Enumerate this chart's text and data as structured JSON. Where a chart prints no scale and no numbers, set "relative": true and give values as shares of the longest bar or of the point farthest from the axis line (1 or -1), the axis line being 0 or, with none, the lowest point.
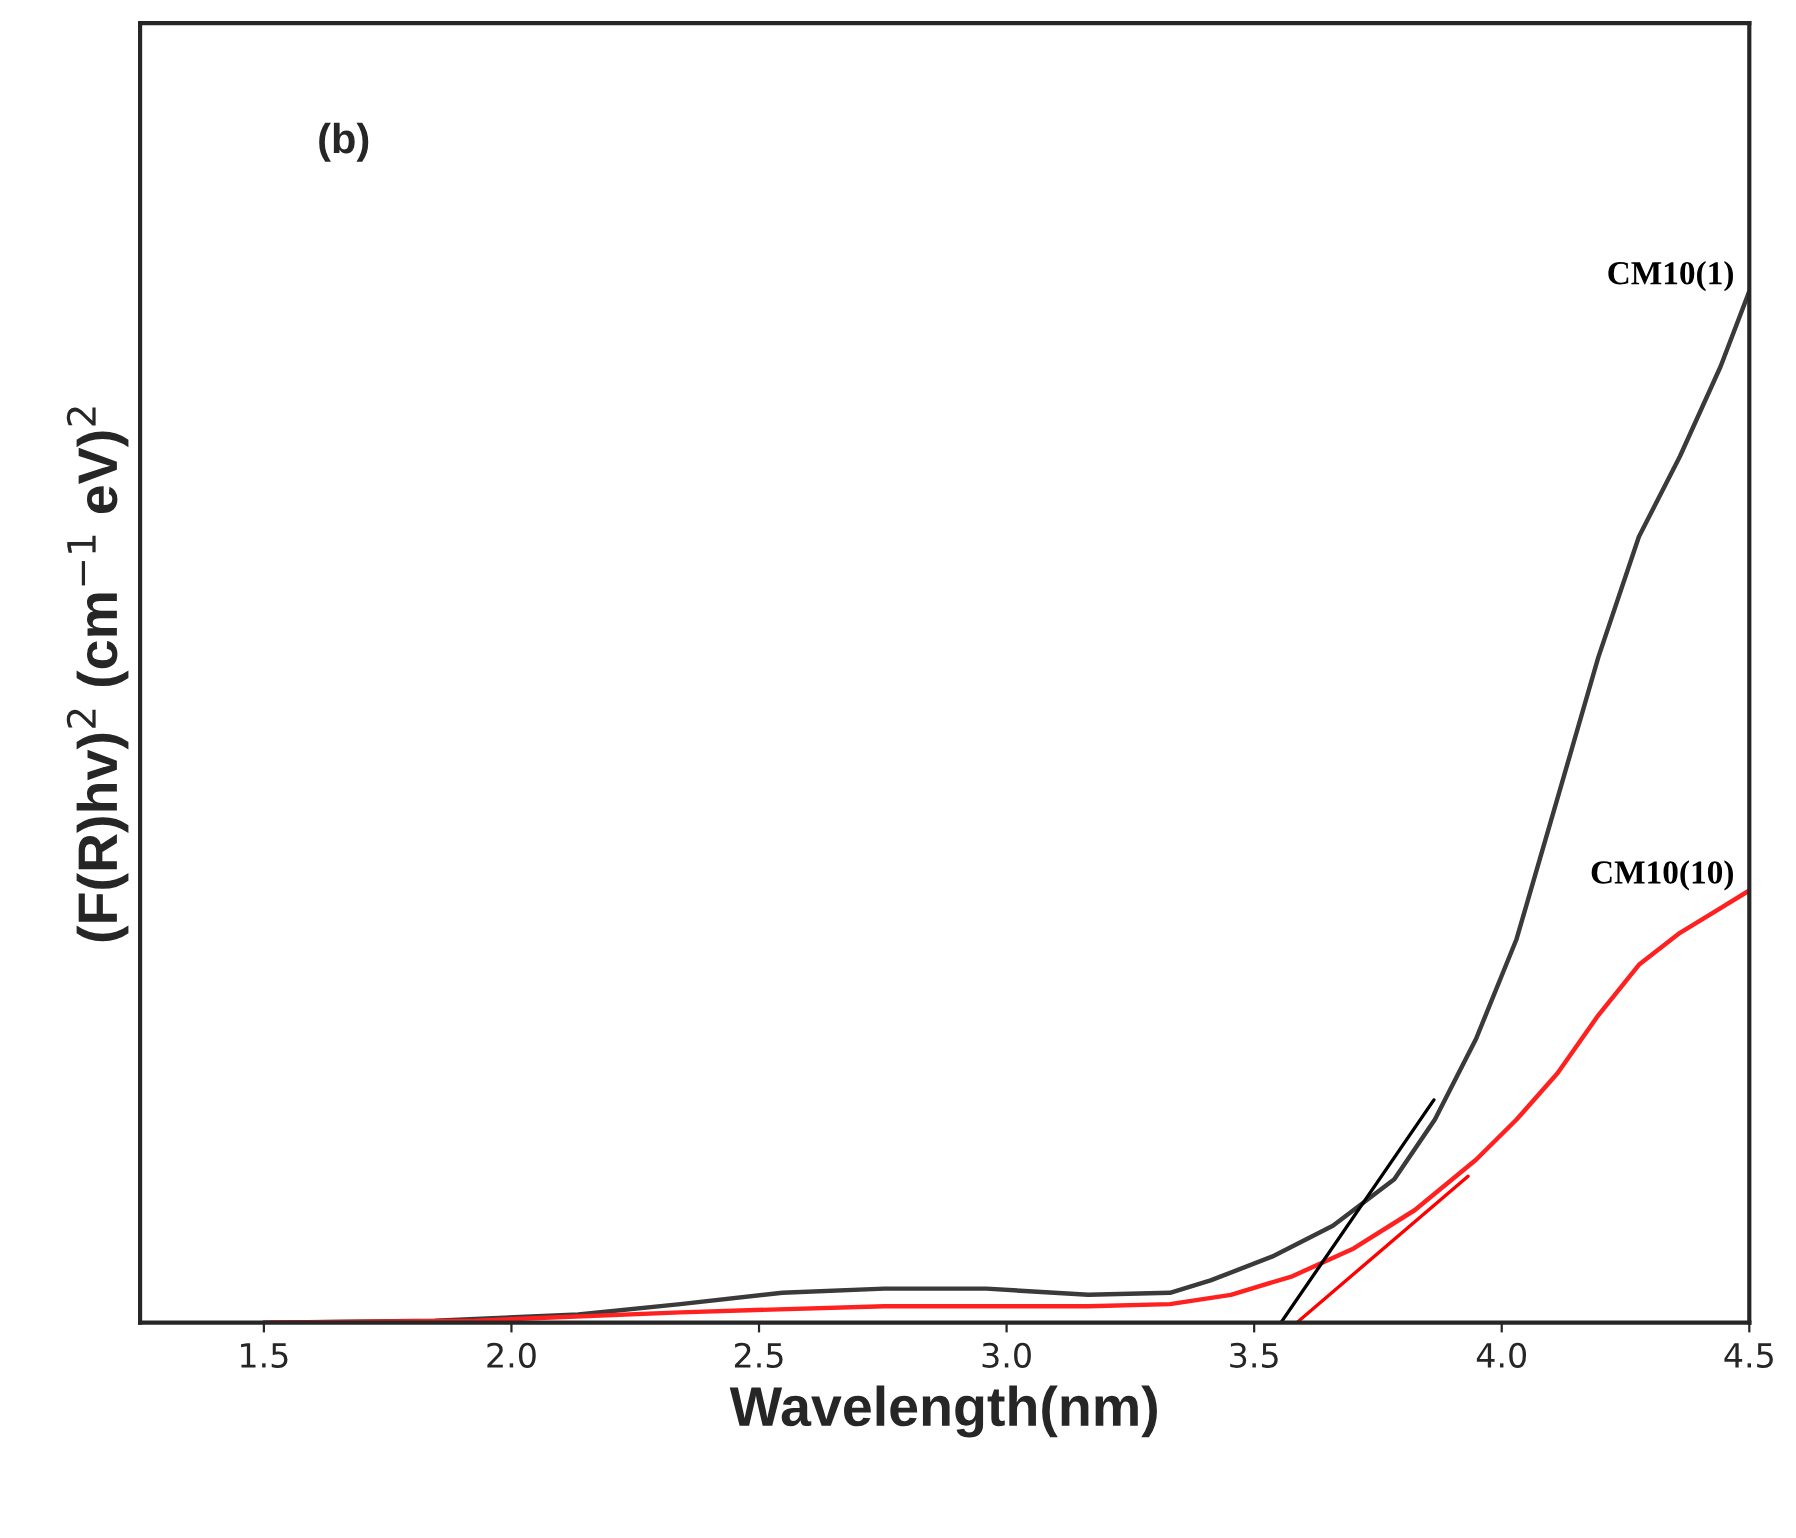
{
  "chart_data": {
    "type": "line",
    "relative": true,
    "xlabel": "Wavelength(nm)",
    "ylabel": "(F(R)hv)$^{2}$ (cm$^{−1}$ eV)$^{2}$",
    "annotations": [
      "(b)"
    ],
    "xlim": [
      1.25,
      4.5
    ],
    "xticks": [
      1.5,
      {
        "value": 2,
        "label": "2.0"
      },
      2.5,
      {
        "value": 3,
        "label": "3.0"
      },
      3.5,
      {
        "value": 4,
        "label": "4.0"
      },
      4.5
    ],
    "grid": false,
    "legend": false,
    "series": [
      {
        "name": "CM10(1)",
        "color": "#3a3a3a",
        "x": [
          1.5,
          1.846,
          2.135,
          2.341,
          2.547,
          2.753,
          2.959,
          3.165,
          3.33,
          3.412,
          3.536,
          3.659,
          3.783,
          3.865,
          3.948,
          4.03,
          4.113,
          4.195,
          4.277,
          4.36,
          4.442,
          4.5
        ],
        "values": [
          0,
          0.002,
          0.008,
          0.018,
          0.029,
          0.033,
          0.033,
          0.027,
          0.029,
          0.041,
          0.064,
          0.094,
          0.139,
          0.197,
          0.275,
          0.372,
          0.509,
          0.645,
          0.762,
          0.84,
          0.927,
          1.0
        ]
      },
      {
        "name": "CM10(10)",
        "color": "#ff2020",
        "x": [
          1.5,
          1.929,
          2.341,
          2.753,
          3.165,
          3.33,
          3.453,
          3.577,
          3.701,
          3.824,
          3.948,
          4.03,
          4.113,
          4.195,
          4.277,
          4.36,
          4.442,
          4.5
        ],
        "values": [
          0,
          0.002,
          0.01,
          0.016,
          0.016,
          0.018,
          0.027,
          0.045,
          0.072,
          0.109,
          0.158,
          0.197,
          0.242,
          0.298,
          0.347,
          0.378,
          0.402,
          0.419
        ]
      },
      {
        "color": "#000000",
        "x": [
          3.554,
          3.863
        ],
        "values": [
          0,
          0.216
        ]
      },
      {
        "color": "#ff0000",
        "x": [
          3.586,
          3.932
        ],
        "values": [
          0,
          0.142
        ]
      }
    ]
  }
}
